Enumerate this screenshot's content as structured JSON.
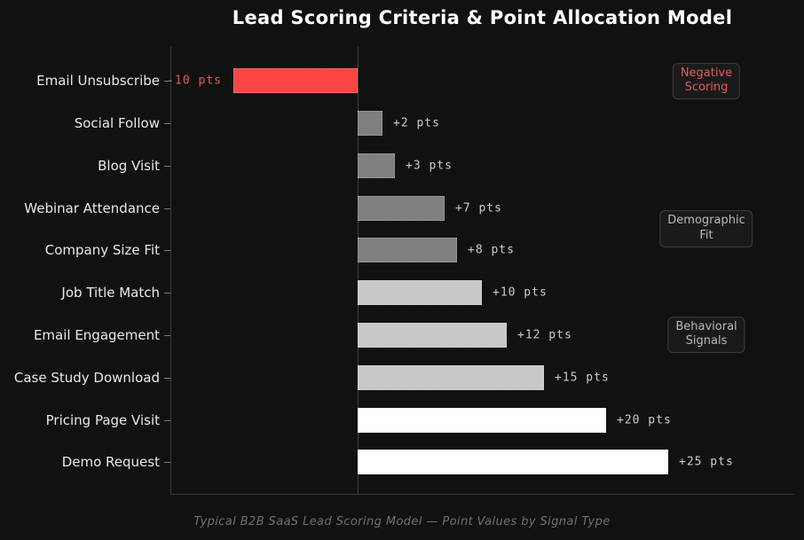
{
  "title": "Lead Scoring Criteria & Point Allocation Model",
  "caption": "Typical B2B SaaS Lead Scoring Model — Point Values by Signal Type",
  "chart_data": {
    "type": "bar",
    "orientation": "horizontal",
    "title": "Lead Scoring Criteria & Point Allocation Model",
    "xlabel": "",
    "ylabel": "",
    "xlim": [
      -15,
      35
    ],
    "grid": false,
    "legend": false,
    "categories": [
      "Email Unsubscribe",
      "Social Follow",
      "Blog Visit",
      "Webinar Attendance",
      "Company Size Fit",
      "Job Title Match",
      "Email Engagement",
      "Case Study Download",
      "Pricing Page Visit",
      "Demo Request"
    ],
    "values": [
      -10,
      2,
      3,
      7,
      8,
      10,
      12,
      15,
      20,
      25
    ],
    "value_labels": [
      "-10 pts",
      "+2 pts",
      "+3 pts",
      "+7 pts",
      "+8 pts",
      "+10 pts",
      "+12 pts",
      "+15 pts",
      "+20 pts",
      "+25 pts"
    ],
    "bar_colors": [
      "#fc4545",
      "#7f7f7f",
      "#7f7f7f",
      "#7f7f7f",
      "#7f7f7f",
      "#c8c8c8",
      "#c8c8c8",
      "#c8c8c8",
      "#ffffff",
      "#ffffff"
    ],
    "annotations": [
      {
        "lines": [
          "Negative",
          "Scoring"
        ],
        "color": "#e05b5b"
      },
      {
        "lines": [
          "Demographic",
          "Fit"
        ],
        "color": "#b9b9b9"
      },
      {
        "lines": [
          "Behavioral",
          "Signals"
        ],
        "color": "#b9b9b9"
      }
    ]
  },
  "colors": {
    "background": "#111111",
    "axis": "#3c3c3c",
    "zero_line": "#404040",
    "category_label": "#e8e8e8",
    "positive_value_label": "#cccccc",
    "negative_value_label": "#e05b5b",
    "title": "#ffffff",
    "caption": "#707070"
  }
}
